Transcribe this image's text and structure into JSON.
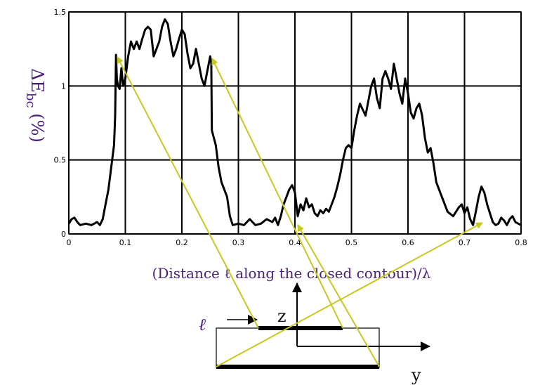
{
  "chart_data": {
    "type": "line",
    "xlabel": "(Distance ℓ along the closed contour)/λ",
    "ylabel": {
      "prefix": "ΔE",
      "subscript": "bc",
      "suffix": " (%)"
    },
    "xlim": [
      0,
      0.8
    ],
    "ylim": [
      0,
      1.5
    ],
    "grid": true,
    "x_ticks": [
      0,
      0.1,
      0.2,
      0.3,
      0.4,
      0.5,
      0.6,
      0.7,
      0.8
    ],
    "x_tick_labels": [
      "0",
      "0.1",
      "0.2",
      "0.3",
      "0.4",
      "0.5",
      "0.6",
      "0.7",
      "0.8"
    ],
    "y_ticks": [
      0,
      0.5,
      1,
      1.5
    ],
    "y_tick_labels": [
      "0",
      "0.5",
      "1",
      "1.5"
    ],
    "series": [
      {
        "color": "#000000",
        "points": [
          [
            0.0,
            0.07
          ],
          [
            0.005,
            0.1
          ],
          [
            0.01,
            0.11
          ],
          [
            0.015,
            0.08
          ],
          [
            0.02,
            0.06
          ],
          [
            0.03,
            0.07
          ],
          [
            0.04,
            0.06
          ],
          [
            0.05,
            0.08
          ],
          [
            0.055,
            0.06
          ],
          [
            0.06,
            0.1
          ],
          [
            0.065,
            0.2
          ],
          [
            0.07,
            0.3
          ],
          [
            0.075,
            0.45
          ],
          [
            0.08,
            0.6
          ],
          [
            0.082,
            0.8
          ],
          [
            0.0835,
            1.21
          ],
          [
            0.085,
            1.05
          ],
          [
            0.087,
            1.0
          ],
          [
            0.09,
            0.98
          ],
          [
            0.093,
            1.12
          ],
          [
            0.096,
            1.0
          ],
          [
            0.1,
            1.05
          ],
          [
            0.105,
            1.2
          ],
          [
            0.11,
            1.3
          ],
          [
            0.115,
            1.25
          ],
          [
            0.12,
            1.3
          ],
          [
            0.125,
            1.25
          ],
          [
            0.13,
            1.32
          ],
          [
            0.135,
            1.38
          ],
          [
            0.14,
            1.4
          ],
          [
            0.145,
            1.38
          ],
          [
            0.15,
            1.2
          ],
          [
            0.155,
            1.25
          ],
          [
            0.16,
            1.3
          ],
          [
            0.165,
            1.4
          ],
          [
            0.17,
            1.45
          ],
          [
            0.175,
            1.42
          ],
          [
            0.18,
            1.3
          ],
          [
            0.185,
            1.2
          ],
          [
            0.19,
            1.25
          ],
          [
            0.195,
            1.32
          ],
          [
            0.2,
            1.38
          ],
          [
            0.205,
            1.35
          ],
          [
            0.21,
            1.22
          ],
          [
            0.215,
            1.12
          ],
          [
            0.22,
            1.15
          ],
          [
            0.225,
            1.25
          ],
          [
            0.23,
            1.15
          ],
          [
            0.235,
            1.05
          ],
          [
            0.24,
            1.0
          ],
          [
            0.245,
            1.1
          ],
          [
            0.25,
            1.2
          ],
          [
            0.252,
            1.15
          ],
          [
            0.253,
            0.7
          ],
          [
            0.26,
            0.6
          ],
          [
            0.265,
            0.45
          ],
          [
            0.27,
            0.35
          ],
          [
            0.28,
            0.25
          ],
          [
            0.285,
            0.12
          ],
          [
            0.29,
            0.06
          ],
          [
            0.3,
            0.07
          ],
          [
            0.31,
            0.06
          ],
          [
            0.32,
            0.1
          ],
          [
            0.33,
            0.06
          ],
          [
            0.34,
            0.07
          ],
          [
            0.35,
            0.1
          ],
          [
            0.36,
            0.08
          ],
          [
            0.365,
            0.11
          ],
          [
            0.37,
            0.06
          ],
          [
            0.375,
            0.12
          ],
          [
            0.38,
            0.2
          ],
          [
            0.385,
            0.25
          ],
          [
            0.39,
            0.3
          ],
          [
            0.395,
            0.33
          ],
          [
            0.4,
            0.28
          ],
          [
            0.405,
            0.12
          ],
          [
            0.41,
            0.2
          ],
          [
            0.415,
            0.16
          ],
          [
            0.42,
            0.24
          ],
          [
            0.425,
            0.18
          ],
          [
            0.43,
            0.2
          ],
          [
            0.435,
            0.14
          ],
          [
            0.44,
            0.12
          ],
          [
            0.445,
            0.16
          ],
          [
            0.45,
            0.14
          ],
          [
            0.455,
            0.17
          ],
          [
            0.46,
            0.15
          ],
          [
            0.465,
            0.2
          ],
          [
            0.47,
            0.25
          ],
          [
            0.475,
            0.32
          ],
          [
            0.48,
            0.4
          ],
          [
            0.485,
            0.5
          ],
          [
            0.49,
            0.58
          ],
          [
            0.495,
            0.6
          ],
          [
            0.5,
            0.58
          ],
          [
            0.505,
            0.7
          ],
          [
            0.51,
            0.8
          ],
          [
            0.515,
            0.88
          ],
          [
            0.52,
            0.84
          ],
          [
            0.525,
            0.8
          ],
          [
            0.53,
            0.9
          ],
          [
            0.535,
            1.0
          ],
          [
            0.54,
            1.05
          ],
          [
            0.545,
            0.92
          ],
          [
            0.55,
            0.85
          ],
          [
            0.555,
            1.05
          ],
          [
            0.56,
            1.1
          ],
          [
            0.565,
            1.05
          ],
          [
            0.57,
            0.98
          ],
          [
            0.575,
            1.15
          ],
          [
            0.58,
            1.05
          ],
          [
            0.585,
            0.95
          ],
          [
            0.59,
            0.88
          ],
          [
            0.595,
            1.05
          ],
          [
            0.6,
            0.95
          ],
          [
            0.605,
            0.82
          ],
          [
            0.61,
            0.78
          ],
          [
            0.615,
            0.85
          ],
          [
            0.62,
            0.88
          ],
          [
            0.625,
            0.8
          ],
          [
            0.63,
            0.65
          ],
          [
            0.635,
            0.55
          ],
          [
            0.64,
            0.58
          ],
          [
            0.645,
            0.48
          ],
          [
            0.65,
            0.35
          ],
          [
            0.66,
            0.25
          ],
          [
            0.67,
            0.15
          ],
          [
            0.68,
            0.12
          ],
          [
            0.69,
            0.18
          ],
          [
            0.695,
            0.2
          ],
          [
            0.7,
            0.14
          ],
          [
            0.705,
            0.18
          ],
          [
            0.71,
            0.1
          ],
          [
            0.715,
            0.06
          ],
          [
            0.72,
            0.15
          ],
          [
            0.725,
            0.25
          ],
          [
            0.73,
            0.32
          ],
          [
            0.735,
            0.28
          ],
          [
            0.74,
            0.2
          ],
          [
            0.745,
            0.14
          ],
          [
            0.75,
            0.08
          ],
          [
            0.755,
            0.06
          ],
          [
            0.76,
            0.07
          ],
          [
            0.765,
            0.11
          ],
          [
            0.77,
            0.09
          ],
          [
            0.775,
            0.06
          ],
          [
            0.78,
            0.1
          ],
          [
            0.785,
            0.12
          ],
          [
            0.79,
            0.08
          ],
          [
            0.8,
            0.06
          ]
        ]
      }
    ]
  },
  "diagram": {
    "z_label": "z",
    "y_label": "y",
    "ell_label": "ℓ"
  },
  "colors": {
    "curve": "#000000",
    "grid": "#000000",
    "arrows": "#c8c81e",
    "labels": "#4b1f7a"
  }
}
